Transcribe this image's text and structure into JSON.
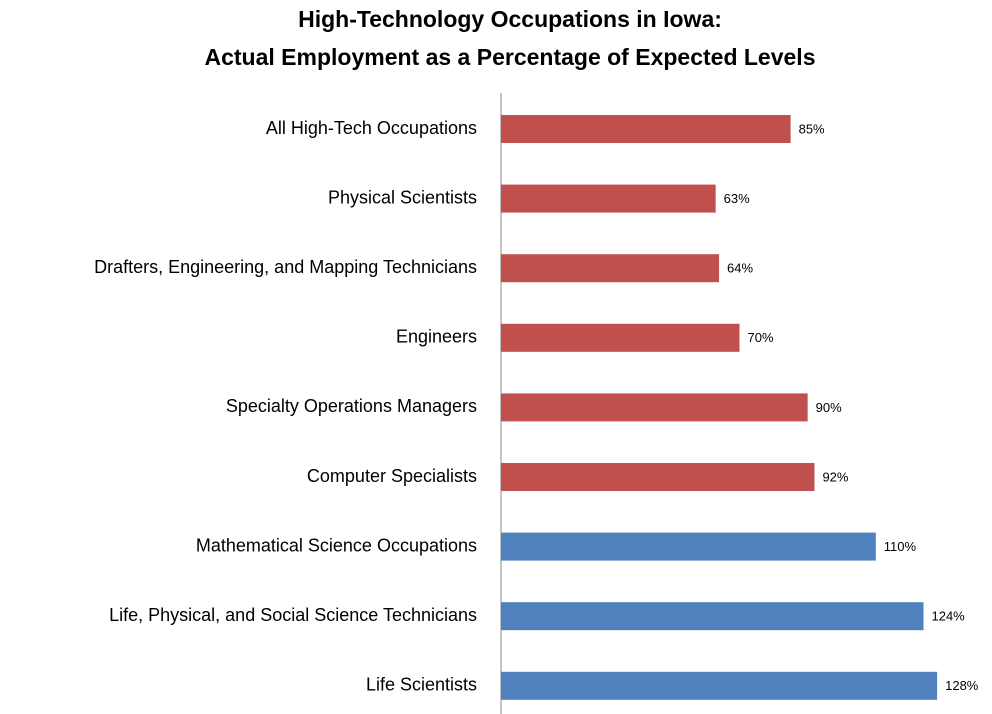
{
  "chart_data": {
    "type": "hbar",
    "title": [
      "High-Technology Occupations in Iowa:",
      "Actual Employment as a Percentage of Expected Levels"
    ],
    "categories": [
      "All High-Tech Occupations",
      "Physical Scientists",
      "Drafters, Engineering, and Mapping Technicians",
      "Engineers",
      "Specialty Operations Managers",
      "Computer Specialists",
      "Mathematical Science Occupations",
      "Life, Physical, and Social Science Technicians",
      "Life Scientists"
    ],
    "values": [
      85,
      63,
      64,
      70,
      90,
      92,
      110,
      124,
      128
    ],
    "value_labels": [
      "85%",
      "63%",
      "64%",
      "70%",
      "90%",
      "92%",
      "110%",
      "124%",
      "128%"
    ],
    "colors": [
      "#c0504d",
      "#c0504d",
      "#c0504d",
      "#c0504d",
      "#c0504d",
      "#c0504d",
      "#4f81bd",
      "#4f81bd",
      "#4f81bd"
    ],
    "xlim": [
      0,
      140
    ]
  }
}
